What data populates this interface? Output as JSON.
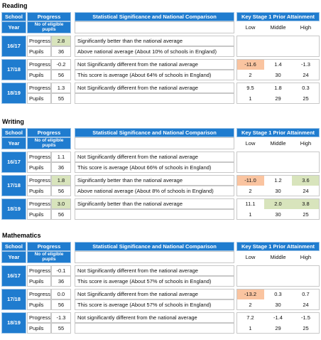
{
  "sections": [
    {
      "title": "Reading",
      "header": {
        "school": "School",
        "year": "Year",
        "progress": "Progress",
        "eligible": "No of eligible pupils",
        "statement": "Statistical Significance and National Comparison",
        "ks1": "Key Stage 1 Prior Attainment",
        "low": "Low",
        "middle": "Middle",
        "high": "High"
      },
      "rows": [
        {
          "year": "16/17",
          "progress_label": "Progress",
          "progress": {
            "text": "2.8",
            "color": "#d8e4bc"
          },
          "progress_statement": "Significantly better than the national average",
          "pupils_label": "Pupils",
          "pupils": "36",
          "pupils_statement": "Above national average (About 10% of schools in England)"
        },
        {
          "year": "17/18",
          "progress_label": "Progress",
          "progress": "-0.2",
          "progress_statement": "Not Significantly different from the national average",
          "progress_ks1": [
            {
              "text": "-11.6",
              "color": "#fac4a0"
            },
            "1.4",
            "-1.3"
          ],
          "pupils_label": "Pupils",
          "pupils": "56",
          "pupils_statement": "This score is average (About 64% of schools in England)",
          "pupils_ks1": [
            "2",
            "30",
            "24"
          ]
        },
        {
          "year": "18/19",
          "progress_label": "Progress",
          "progress": "1.3",
          "progress_statement": "Not Significantly different from the national average",
          "progress_ks1": [
            "9.5",
            "1.8",
            "0.3"
          ],
          "pupils_label": "Pupils",
          "pupils": "55",
          "pupils_ks1": [
            "1",
            "29",
            "25"
          ]
        }
      ]
    },
    {
      "title": "Writing",
      "header": {
        "school": "School",
        "year": "Year",
        "progress": "Progress",
        "eligible": "No of eligible pupils",
        "statement": "Statistical Significance and National Comparison",
        "ks1": "Key Stage 1 Prior Attainment",
        "low": "Low",
        "middle": "Middle",
        "high": "High"
      },
      "rows": [
        {
          "year": "16/17",
          "progress_label": "Progress",
          "progress": "1.1",
          "progress_statement": "Not Significantly different from the national average",
          "pupils_label": "Pupils",
          "pupils": "36",
          "pupils_statement": "This score is average (About 66% of schools in England)"
        },
        {
          "year": "17/18",
          "progress_label": "Progress",
          "progress": {
            "text": "1.8",
            "color": "#d8e4bc"
          },
          "progress_statement": "Significantly better than the national average",
          "progress_ks1": [
            {
              "text": "-11.0",
              "color": "#fac4a0"
            },
            "1.2",
            {
              "text": "3.6",
              "color": "#d8e4bc"
            }
          ],
          "pupils_label": "Pupils",
          "pupils": "56",
          "pupils_statement": "Above national average (About 8% of schools in England)",
          "pupils_ks1": [
            "2",
            "30",
            "24"
          ]
        },
        {
          "year": "18/19",
          "progress_label": "Progress",
          "progress": {
            "text": "3.0",
            "color": "#d8e4bc"
          },
          "progress_statement": "Significantly better than the national average",
          "progress_ks1": [
            "11.1",
            {
              "text": "2.0",
              "color": "#d8e4bc"
            },
            {
              "text": "3.8",
              "color": "#d8e4bc"
            }
          ],
          "pupils_label": "Pupils",
          "pupils": "56",
          "pupils_ks1": [
            "1",
            "30",
            "25"
          ]
        }
      ]
    },
    {
      "title": "Mathematics",
      "header": {
        "school": "School",
        "year": "Year",
        "progress": "Progress",
        "eligible": "No of eligible pupils",
        "statement": "Statistical Significance and National Comparison",
        "ks1": "Key Stage 1 Prior Attainment",
        "low": "Low",
        "middle": "Middle",
        "high": "High"
      },
      "rows": [
        {
          "year": "16/17",
          "progress_label": "Progress",
          "progress": "-0.1",
          "progress_statement": "Not Significantly different from the national average",
          "pupils_label": "Pupils",
          "pupils": "36",
          "pupils_statement": "This score is average (About 57% of schools in England)"
        },
        {
          "year": "17/18",
          "progress_label": "Progress",
          "progress": "0.0",
          "progress_statement": "Not Significantly different from the national average",
          "progress_ks1": [
            {
              "text": "-13.2",
              "color": "#fac4a0"
            },
            "0.3",
            "0.7"
          ],
          "pupils_label": "Pupils",
          "pupils": "56",
          "pupils_statement": "This score is average (About 57% of schools in England)",
          "pupils_ks1": [
            "2",
            "30",
            "24"
          ]
        },
        {
          "year": "18/19",
          "progress_label": "Progress",
          "progress": "-1.3",
          "progress_statement": "Not significantly different from the national average",
          "progress_ks1": [
            "7.2",
            "-1.4",
            "-1.5"
          ],
          "pupils_label": "Pupils",
          "pupils": "55",
          "pupils_ks1": [
            "1",
            "29",
            "25"
          ]
        }
      ]
    }
  ]
}
